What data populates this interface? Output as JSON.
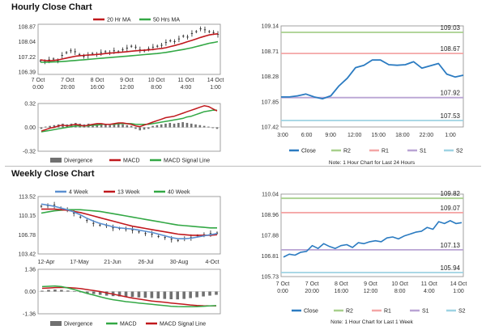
{
  "hourly": {
    "title": "Hourly Close Chart",
    "price_chart": {
      "type": "line",
      "legend": [
        "20 Hr MA",
        "50 Hrs MA"
      ],
      "ylim": [
        106.39,
        108.87
      ],
      "y_ticks": [
        "108.87",
        "108.04",
        "107.22",
        "106.39"
      ],
      "x_ticks": [
        {
          "l1": "7 Oct",
          "l2": "0:00"
        },
        {
          "l1": "7 Oct",
          "l2": "20:00"
        },
        {
          "l1": "8 Oct",
          "l2": "16:00"
        },
        {
          "l1": "9 Oct",
          "l2": "12:00"
        },
        {
          "l1": "10 Oct",
          "l2": "8:00"
        },
        {
          "l1": "11 Oct",
          "l2": "4:00"
        },
        {
          "l1": "14 Oct",
          "l2": "1:00"
        }
      ],
      "close": [
        107.0,
        106.95,
        107.05,
        107.1,
        107.0,
        107.3,
        107.45,
        107.55,
        107.5,
        107.35,
        107.25,
        107.3,
        107.4,
        107.35,
        107.45,
        107.5,
        107.45,
        107.55,
        107.5,
        107.6,
        107.7,
        107.8,
        107.75,
        107.6,
        107.55,
        107.65,
        107.75,
        107.8,
        107.85,
        108.0,
        108.1,
        108.05,
        108.2,
        108.35,
        108.3,
        108.5,
        108.6,
        108.75,
        108.7,
        108.6,
        108.55,
        108.45
      ],
      "ma20": [
        107.05,
        107.02,
        107.0,
        107.02,
        107.05,
        107.1,
        107.15,
        107.2,
        107.25,
        107.28,
        107.3,
        107.32,
        107.33,
        107.35,
        107.37,
        107.4,
        107.42,
        107.44,
        107.46,
        107.48,
        107.5,
        107.53,
        107.55,
        107.57,
        107.58,
        107.6,
        107.62,
        107.65,
        107.68,
        107.72,
        107.78,
        107.84,
        107.9,
        107.97,
        108.05,
        108.12,
        108.2,
        108.28,
        108.35,
        108.42,
        108.46,
        108.48
      ],
      "ma50": [
        106.92,
        106.92,
        106.93,
        106.94,
        106.95,
        106.96,
        106.98,
        107.0,
        107.02,
        107.04,
        107.06,
        107.08,
        107.1,
        107.12,
        107.14,
        107.16,
        107.18,
        107.2,
        107.22,
        107.24,
        107.26,
        107.28,
        107.3,
        107.32,
        107.34,
        107.36,
        107.38,
        107.4,
        107.43,
        107.46,
        107.5,
        107.54,
        107.58,
        107.62,
        107.67,
        107.72,
        107.78,
        107.84,
        107.9,
        107.96,
        108.0,
        108.05
      ]
    },
    "macd_chart": {
      "type": "bar",
      "legend": [
        "Divergence",
        "MACD",
        "MACD Signal Line"
      ],
      "ylim": [
        -0.32,
        0.32
      ],
      "y_ticks": [
        "0.32",
        "0.00",
        "-0.32"
      ],
      "divergence": [
        -0.02,
        0.01,
        0.02,
        0.03,
        0.04,
        0.05,
        0.04,
        0.05,
        0.06,
        0.05,
        0.04,
        0.05,
        0.04,
        0.05,
        0.05,
        0.04,
        0.03,
        0.04,
        0.05,
        0.04,
        0.03,
        0.02,
        -0.02,
        -0.04,
        -0.03,
        -0.02,
        0.02,
        0.03,
        0.04,
        0.05,
        0.06,
        0.05,
        0.06,
        0.07,
        0.06,
        0.05,
        0.04,
        0.03,
        0.02,
        0.01,
        -0.01,
        -0.02
      ],
      "macd": [
        -0.05,
        -0.03,
        -0.01,
        0.0,
        0.02,
        0.03,
        0.02,
        0.03,
        0.04,
        0.03,
        0.02,
        0.03,
        0.04,
        0.05,
        0.05,
        0.04,
        0.04,
        0.05,
        0.06,
        0.06,
        0.05,
        0.04,
        0.02,
        0.01,
        0.03,
        0.05,
        0.07,
        0.09,
        0.11,
        0.13,
        0.14,
        0.15,
        0.17,
        0.19,
        0.21,
        0.23,
        0.25,
        0.27,
        0.29,
        0.28,
        0.25,
        0.22
      ],
      "signal": [
        -0.06,
        -0.05,
        -0.04,
        -0.03,
        -0.02,
        -0.01,
        0.0,
        0.01,
        0.02,
        0.02,
        0.02,
        0.02,
        0.03,
        0.03,
        0.04,
        0.04,
        0.04,
        0.04,
        0.05,
        0.05,
        0.05,
        0.05,
        0.04,
        0.04,
        0.04,
        0.04,
        0.05,
        0.06,
        0.07,
        0.08,
        0.09,
        0.1,
        0.11,
        0.12,
        0.14,
        0.15,
        0.17,
        0.19,
        0.21,
        0.22,
        0.23,
        0.23
      ]
    },
    "pivot_chart": {
      "type": "line",
      "ylim": [
        107.42,
        109.14
      ],
      "y_ticks": [
        "109.14",
        "108.71",
        "108.28",
        "107.85",
        "107.42"
      ],
      "x_ticks": [
        "3:00",
        "6:00",
        "9:00",
        "12:00",
        "15:00",
        "18:00",
        "22:00",
        "1:00"
      ],
      "levels": [
        {
          "name": "R2",
          "value": 109.03,
          "label": "109.03",
          "color": "#a8d08d"
        },
        {
          "name": "R1",
          "value": 108.67,
          "label": "108.67",
          "color": "#f4a6a6"
        },
        {
          "name": "S1",
          "value": 107.92,
          "label": "107.92",
          "color": "#b9a4d4"
        },
        {
          "name": "S2",
          "value": 107.53,
          "label": "107.53",
          "color": "#9ed3e3"
        }
      ],
      "close": [
        107.93,
        107.93,
        107.95,
        107.98,
        107.93,
        107.9,
        107.95,
        108.12,
        108.25,
        108.43,
        108.47,
        108.56,
        108.56,
        108.48,
        108.47,
        108.48,
        108.53,
        108.42,
        108.46,
        108.5,
        108.32,
        108.27,
        108.3
      ],
      "legend": [
        "Close",
        "R2",
        "R1",
        "S1",
        "S2"
      ],
      "note": "Note: 1 Hour Chart for Last 24 Hours"
    }
  },
  "weekly": {
    "title": "Weekly Close Chart",
    "price_chart": {
      "type": "line",
      "legend": [
        "4 Week",
        "13 Week",
        "40 Week"
      ],
      "ylim": [
        103.42,
        113.52
      ],
      "y_ticks": [
        "113.52",
        "110.15",
        "106.78",
        "103.42"
      ],
      "x_ticks": [
        "12-Apr",
        "17-May",
        "21-Jun",
        "26-Jul",
        "30-Aug",
        "4-Oct"
      ],
      "close": [
        111.8,
        111.9,
        112.0,
        111.5,
        111.2,
        110.6,
        109.9,
        109.3,
        108.8,
        108.5,
        108.4,
        108.0,
        107.9,
        107.8,
        107.6,
        107.3,
        107.0,
        106.9,
        106.5,
        106.3,
        106.0,
        105.8,
        106.1,
        106.3,
        106.6,
        106.8,
        107.0,
        107.1
      ],
      "w4": [
        112.2,
        112.0,
        111.8,
        111.5,
        111.2,
        110.8,
        110.3,
        109.7,
        109.2,
        108.8,
        108.5,
        108.2,
        108.0,
        107.9,
        107.8,
        107.6,
        107.4,
        107.2,
        106.9,
        106.6,
        106.3,
        106.1,
        106.1,
        106.2,
        106.4,
        106.6,
        106.8,
        107.0
      ],
      "w13": [
        111.3,
        111.3,
        111.3,
        111.2,
        111.1,
        110.9,
        110.7,
        110.4,
        110.1,
        109.8,
        109.5,
        109.2,
        108.9,
        108.6,
        108.3,
        108.1,
        107.9,
        107.7,
        107.5,
        107.3,
        107.1,
        106.9,
        106.8,
        106.7,
        106.7,
        106.7,
        106.7,
        106.8
      ],
      "w40": [
        110.6,
        110.8,
        111.0,
        111.1,
        111.2,
        111.2,
        111.2,
        111.1,
        111.0,
        110.9,
        110.7,
        110.5,
        110.3,
        110.1,
        109.9,
        109.7,
        109.5,
        109.3,
        109.1,
        108.9,
        108.7,
        108.5,
        108.4,
        108.3,
        108.2,
        108.1,
        108.0,
        108.0
      ]
    },
    "macd_chart": {
      "type": "bar",
      "legend": [
        "Divergence",
        "MACD",
        "MACD Signal Line"
      ],
      "ylim": [
        -1.36,
        1.36
      ],
      "y_ticks": [
        "1.36",
        "0.00",
        "-1.36"
      ],
      "divergence": [
        0.05,
        0.1,
        0.12,
        0.1,
        0.06,
        0.02,
        -0.05,
        -0.1,
        -0.15,
        -0.2,
        -0.25,
        -0.28,
        -0.3,
        -0.32,
        -0.34,
        -0.36,
        -0.38,
        -0.4,
        -0.42,
        -0.45,
        -0.47,
        -0.48,
        -0.45,
        -0.4,
        -0.35,
        -0.3,
        -0.25,
        -0.2
      ],
      "macd": [
        0.3,
        0.32,
        0.34,
        0.3,
        0.22,
        0.12,
        0.0,
        -0.12,
        -0.22,
        -0.32,
        -0.42,
        -0.5,
        -0.56,
        -0.62,
        -0.66,
        -0.7,
        -0.74,
        -0.78,
        -0.82,
        -0.86,
        -0.9,
        -0.92,
        -0.93,
        -0.93,
        -0.92,
        -0.9,
        -0.88,
        -0.86
      ],
      "signal": [
        0.2,
        0.22,
        0.24,
        0.25,
        0.24,
        0.22,
        0.18,
        0.12,
        0.06,
        0.0,
        -0.08,
        -0.16,
        -0.24,
        -0.32,
        -0.4,
        -0.46,
        -0.52,
        -0.58,
        -0.62,
        -0.66,
        -0.7,
        -0.74,
        -0.78,
        -0.82,
        -0.85,
        -0.87,
        -0.88,
        -0.88
      ]
    },
    "pivot_chart": {
      "type": "line",
      "ylim": [
        105.73,
        110.04
      ],
      "y_ticks": [
        "110.04",
        "108.96",
        "107.88",
        "106.81",
        "105.73"
      ],
      "x_ticks": [
        {
          "l1": "7 Oct",
          "l2": "0:00"
        },
        {
          "l1": "7 Oct",
          "l2": "20:00"
        },
        {
          "l1": "8 Oct",
          "l2": "16:00"
        },
        {
          "l1": "9 Oct",
          "l2": "12:00"
        },
        {
          "l1": "10 Oct",
          "l2": "8:00"
        },
        {
          "l1": "11 Oct",
          "l2": "4:00"
        },
        {
          "l1": "14 Oct",
          "l2": "1:00"
        }
      ],
      "levels": [
        {
          "name": "R2",
          "value": 109.82,
          "label": "109.82",
          "color": "#a8d08d"
        },
        {
          "name": "R1",
          "value": 109.07,
          "label": "109.07",
          "color": "#f4a6a6"
        },
        {
          "name": "S1",
          "value": 107.13,
          "label": "107.13",
          "color": "#b9a4d4"
        },
        {
          "name": "S2",
          "value": 105.94,
          "label": "105.94",
          "color": "#9ed3e3"
        }
      ],
      "close": [
        106.75,
        106.9,
        106.85,
        107.0,
        107.05,
        107.35,
        107.2,
        107.45,
        107.3,
        107.2,
        107.35,
        107.4,
        107.25,
        107.5,
        107.45,
        107.55,
        107.6,
        107.55,
        107.75,
        107.8,
        107.7,
        107.85,
        107.95,
        108.05,
        108.1,
        108.3,
        108.2,
        108.6,
        108.5,
        108.65,
        108.5,
        108.55
      ],
      "legend": [
        "Close",
        "R2",
        "R1",
        "S1",
        "S2"
      ],
      "note": "Note: 1 Hour Chart for Last 1 Week"
    }
  },
  "colors": {
    "close": "#2b7bc1",
    "ma_red": "#c0181d",
    "ma_green": "#33a845",
    "ma_blue": "#5b8fd0",
    "divergence": "#707070"
  }
}
